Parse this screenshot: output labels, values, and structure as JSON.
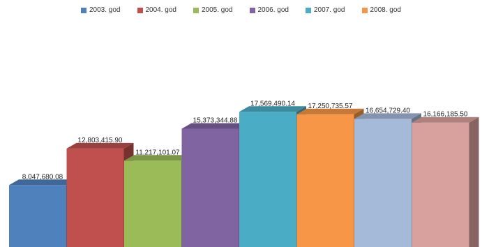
{
  "chart_data": {
    "type": "bar",
    "three_d": true,
    "legend_position": "top",
    "grid": false,
    "categories": [
      "2003. god",
      "2004. god",
      "2005. god",
      "2006. god",
      "2007. god",
      "2008. god",
      "",
      ""
    ],
    "values": [
      8047680.08,
      12803415.9,
      11217101.07,
      15373344.88,
      17569490.14,
      17250735.57,
      16654729.4,
      16166185.5
    ],
    "data_labels": [
      "8,047,680.08",
      "12,803,415.90",
      "11,217,101.07",
      "15,373,344.88",
      "17,569,490.14",
      "17,250,735.57",
      "16,654,729.40",
      "16,166,185.50"
    ],
    "colors": [
      "#4f81bd",
      "#c0504d",
      "#9bbb59",
      "#8064a2",
      "#4bacc6",
      "#f79646",
      "#a5b9d9",
      "#d9a19e"
    ],
    "legend": [
      {
        "label": "2003. god",
        "color": "#4f81bd"
      },
      {
        "label": "2004. god",
        "color": "#c0504d"
      },
      {
        "label": "2005. god",
        "color": "#9bbb59"
      },
      {
        "label": "2006. god",
        "color": "#8064a2"
      },
      {
        "label": "2007. god",
        "color": "#4bacc6"
      },
      {
        "label": "2008. god",
        "color": "#f79646"
      }
    ],
    "ylim": [
      0,
      18500000
    ]
  }
}
